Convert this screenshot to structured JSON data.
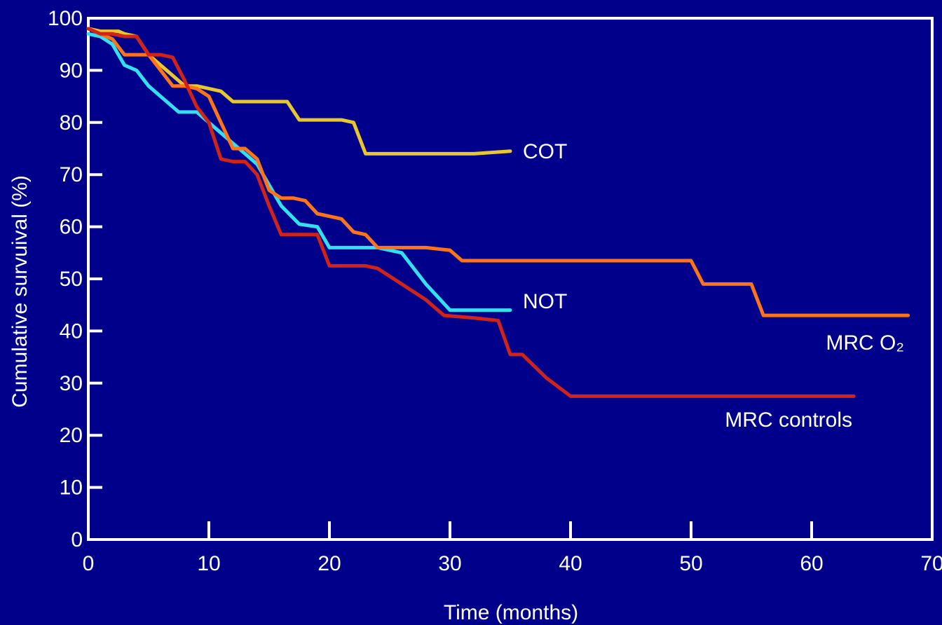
{
  "chart_data": {
    "type": "line",
    "title": "",
    "xlabel": "Time (months)",
    "ylabel": "Cumulative survuival (%)",
    "xlim": [
      0,
      70
    ],
    "ylim": [
      0,
      100
    ],
    "xticks": [
      0,
      10,
      20,
      30,
      40,
      50,
      60,
      70
    ],
    "yticks": [
      0,
      10,
      20,
      30,
      40,
      50,
      60,
      70,
      80,
      90,
      100
    ],
    "grid": false,
    "legend": "inline labels at line ends",
    "background": "#00008b",
    "series": [
      {
        "name": "COT",
        "color": "#e8c62e",
        "x": [
          0,
          1,
          2.5,
          3,
          4,
          5,
          6,
          7,
          8,
          9,
          10,
          11,
          12,
          13,
          14,
          15,
          16.5,
          17.5,
          19,
          21,
          22,
          23,
          24,
          26,
          28,
          30,
          32,
          35
        ],
        "y": [
          98,
          97.5,
          97.5,
          97,
          96.5,
          93,
          91,
          89,
          87,
          87,
          86.5,
          86,
          84,
          84,
          84,
          84,
          84,
          80.5,
          80.5,
          80.5,
          80,
          74,
          74,
          74,
          74,
          74,
          74,
          74.5
        ]
      },
      {
        "name": "NOT",
        "color": "#33e0f0",
        "x": [
          0,
          1,
          2,
          3,
          4,
          5,
          6,
          7.5,
          9,
          10,
          11,
          12,
          13,
          14,
          15,
          16,
          17.5,
          19,
          20,
          22,
          24,
          26,
          28,
          30,
          32,
          35
        ],
        "y": [
          97,
          96.5,
          95,
          91,
          90,
          87,
          85,
          82,
          82,
          80,
          78,
          76,
          74,
          72,
          68,
          64,
          60.5,
          60,
          56,
          56,
          56,
          55,
          49,
          44,
          44,
          44
        ]
      },
      {
        "name": "MRC O₂",
        "color": "#ff7418",
        "x": [
          0,
          1,
          2,
          3,
          4,
          5,
          6,
          7,
          8,
          9,
          10,
          11,
          12,
          13,
          14,
          15,
          16,
          17,
          18,
          19,
          20,
          21,
          22,
          23,
          24,
          26,
          28,
          30,
          31,
          35,
          40,
          45,
          50,
          51,
          55,
          56,
          60,
          65,
          68
        ],
        "y": [
          98,
          97,
          96,
          93,
          93,
          93,
          90,
          87,
          87,
          86.5,
          85,
          80,
          75,
          75,
          73,
          67,
          65.5,
          65.5,
          65,
          62.5,
          62,
          61.5,
          59,
          58.5,
          56,
          56,
          56,
          55.5,
          53.5,
          53.5,
          53.5,
          53.5,
          53.5,
          49,
          49,
          43,
          43,
          43,
          43
        ]
      },
      {
        "name": "MRC controls",
        "color": "#d22318",
        "x": [
          0,
          1,
          2,
          3,
          4,
          5,
          6,
          7,
          8,
          9,
          10,
          11,
          12,
          13,
          14,
          15,
          16,
          17,
          19,
          20,
          21,
          22,
          23,
          24,
          26,
          28,
          29.5,
          32,
          34,
          35,
          36,
          38,
          40,
          45,
          50,
          55,
          60,
          63.5
        ],
        "y": [
          98,
          97,
          97,
          96.5,
          96.5,
          93,
          93,
          92.5,
          88,
          83,
          80,
          73,
          72.5,
          72.5,
          70,
          64,
          58.5,
          58.5,
          58.5,
          52.5,
          52.5,
          52.5,
          52.5,
          52,
          49,
          46,
          43,
          42.5,
          42,
          35.5,
          35.5,
          31,
          27.5,
          27.5,
          27.5,
          27.5,
          27.5,
          27.5
        ]
      }
    ]
  }
}
